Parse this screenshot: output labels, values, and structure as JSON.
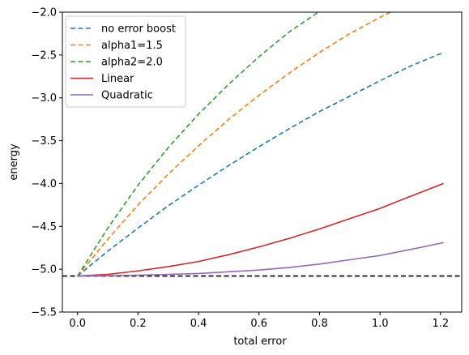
{
  "chart_data": {
    "type": "line",
    "xlabel": "total error",
    "ylabel": "energy",
    "xlim": [
      -0.05,
      1.27
    ],
    "ylim": [
      -5.5,
      -2.0
    ],
    "x_ticks": [
      0.0,
      0.2,
      0.4,
      0.6,
      0.8,
      1.0,
      1.2
    ],
    "x_tick_labels": [
      "0.0",
      "0.2",
      "0.4",
      "0.6",
      "0.8",
      "1.0",
      "1.2"
    ],
    "y_ticks": [
      -5.5,
      -5.0,
      -4.5,
      -4.0,
      -3.5,
      -3.0,
      -2.5,
      -2.0
    ],
    "y_tick_labels": [
      "−5.5",
      "−5.0",
      "−4.5",
      "−4.0",
      "−3.5",
      "−3.0",
      "−2.5",
      "−2.0"
    ],
    "grid": false,
    "legend_position": "top-left",
    "reference_line": {
      "y": -5.08,
      "style": "dashed",
      "color": "#000000"
    },
    "series": [
      {
        "name": "no error boost",
        "color": "#1f77b4",
        "style": "dashed",
        "x": [
          0.0,
          0.1,
          0.2,
          0.3,
          0.4,
          0.5,
          0.6,
          0.7,
          0.8,
          0.9,
          1.0,
          1.1,
          1.21
        ],
        "y": [
          -5.08,
          -4.79,
          -4.52,
          -4.26,
          -4.02,
          -3.79,
          -3.57,
          -3.36,
          -3.16,
          -2.98,
          -2.8,
          -2.63,
          -2.47
        ]
      },
      {
        "name": "alpha1=1.5",
        "color": "#ff7f0e",
        "style": "dashed",
        "x": [
          0.0,
          0.1,
          0.2,
          0.3,
          0.4,
          0.5,
          0.6,
          0.7,
          0.8,
          0.9,
          1.0,
          1.04
        ],
        "y": [
          -5.08,
          -4.65,
          -4.25,
          -3.89,
          -3.56,
          -3.25,
          -2.97,
          -2.71,
          -2.47,
          -2.25,
          -2.06,
          -1.99
        ]
      },
      {
        "name": "alpha2=2.0",
        "color": "#2ca02c",
        "style": "dashed",
        "x": [
          0.0,
          0.1,
          0.2,
          0.3,
          0.4,
          0.5,
          0.6,
          0.7,
          0.8
        ],
        "y": [
          -5.08,
          -4.52,
          -4.02,
          -3.58,
          -3.19,
          -2.84,
          -2.52,
          -2.23,
          -1.99
        ]
      },
      {
        "name": "Linear",
        "color": "#d62728",
        "style": "solid",
        "x": [
          0.0,
          0.1,
          0.2,
          0.3,
          0.4,
          0.5,
          0.6,
          0.7,
          0.8,
          0.9,
          1.0,
          1.1,
          1.21
        ],
        "y": [
          -5.08,
          -5.06,
          -5.02,
          -4.97,
          -4.91,
          -4.83,
          -4.74,
          -4.64,
          -4.53,
          -4.41,
          -4.29,
          -4.15,
          -4.0
        ]
      },
      {
        "name": "Quadratic",
        "color": "#9467bd",
        "style": "solid",
        "x": [
          0.0,
          0.1,
          0.2,
          0.3,
          0.4,
          0.5,
          0.6,
          0.7,
          0.8,
          0.9,
          1.0,
          1.1,
          1.21
        ],
        "y": [
          -5.08,
          -5.075,
          -5.07,
          -5.06,
          -5.05,
          -5.03,
          -5.01,
          -4.98,
          -4.94,
          -4.89,
          -4.84,
          -4.77,
          -4.69
        ]
      }
    ]
  }
}
